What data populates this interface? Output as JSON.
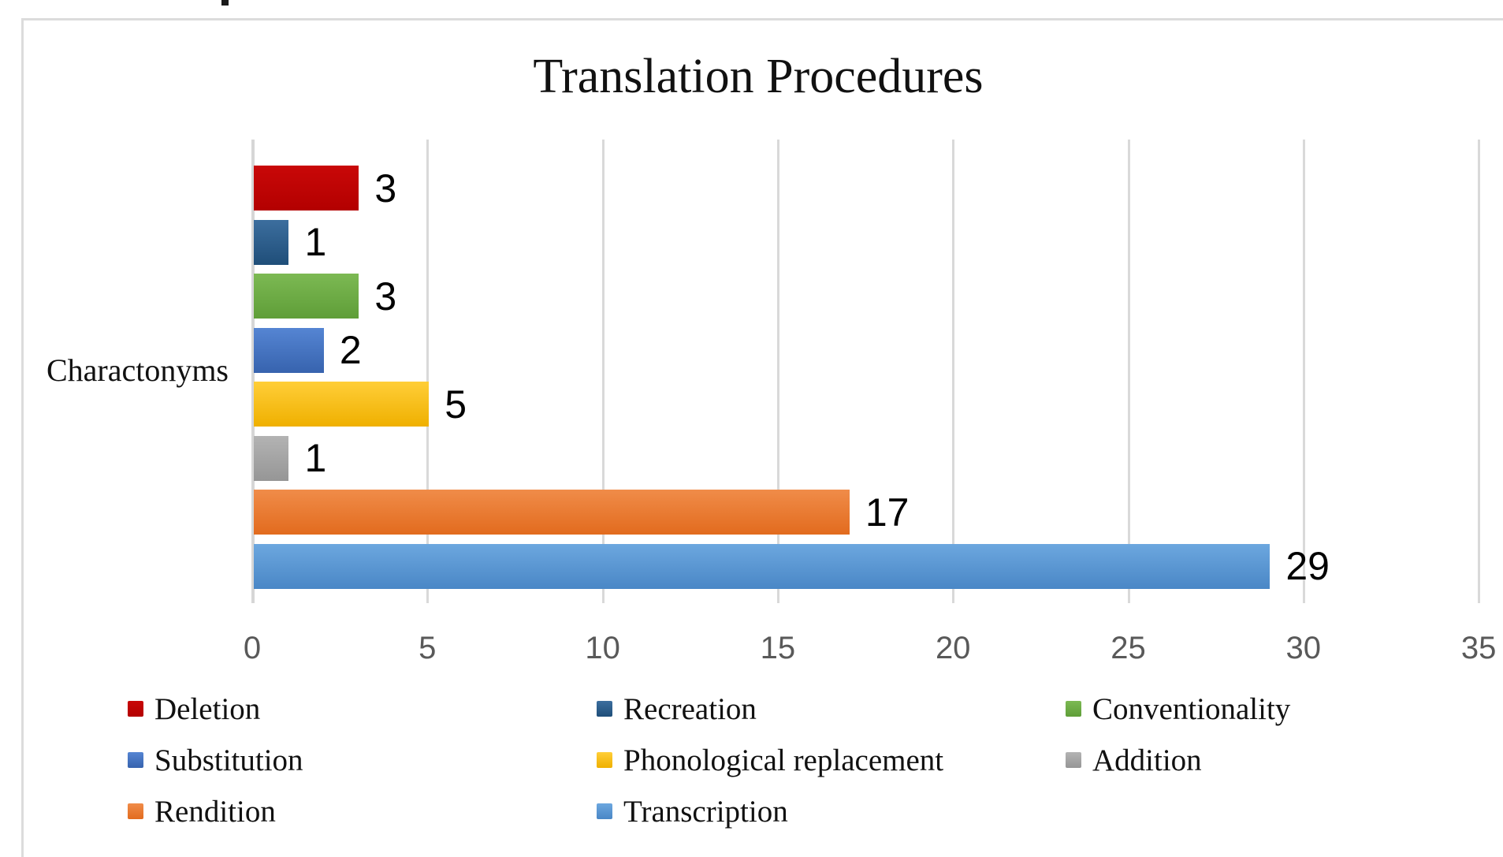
{
  "chart_data": {
    "type": "bar",
    "orientation": "horizontal",
    "title": "Translation Procedures",
    "categories": [
      "Charactonyms"
    ],
    "ylabel": "Charactonyms",
    "xlabel": "",
    "xlim": [
      0,
      35
    ],
    "x_ticks": [
      0,
      5,
      10,
      15,
      20,
      25,
      30,
      35
    ],
    "grid": true,
    "legend_position": "bottom",
    "legend_columns": 3,
    "series": [
      {
        "name": "Deletion",
        "value": 3,
        "color": "#C00000",
        "color_light": "#C90808",
        "color_dark": "#B30000"
      },
      {
        "name": "Recreation",
        "value": 1,
        "color": "#2E5C8A",
        "color_light": "#3C6E9E",
        "color_dark": "#1F4E79"
      },
      {
        "name": "Conventionality",
        "value": 3,
        "color": "#70AD47",
        "color_light": "#7CB953",
        "color_dark": "#5F9E38"
      },
      {
        "name": "Substitution",
        "value": 2,
        "color": "#4472C4",
        "color_light": "#5585D3",
        "color_dark": "#3763AE"
      },
      {
        "name": "Phonological replacement",
        "value": 5,
        "color": "#FFC000",
        "color_light": "#FFCE38",
        "color_dark": "#EFB000"
      },
      {
        "name": "Addition",
        "value": 1,
        "color": "#A5A5A5",
        "color_light": "#B3B3B3",
        "color_dark": "#969696"
      },
      {
        "name": "Rendition",
        "value": 17,
        "color": "#ED7D31",
        "color_light": "#F08C49",
        "color_dark": "#E26B1E"
      },
      {
        "name": "Transcription",
        "value": 29,
        "color": "#5B9BD5",
        "color_light": "#6CA7DF",
        "color_dark": "#4A87C6"
      }
    ]
  },
  "colors": {
    "gridline": "#D9D9D9",
    "border": "#DCDCDC",
    "tick_text": "#595959",
    "text": "#111111"
  },
  "artifact": {
    "description": "cropped text fragment at top edge"
  }
}
